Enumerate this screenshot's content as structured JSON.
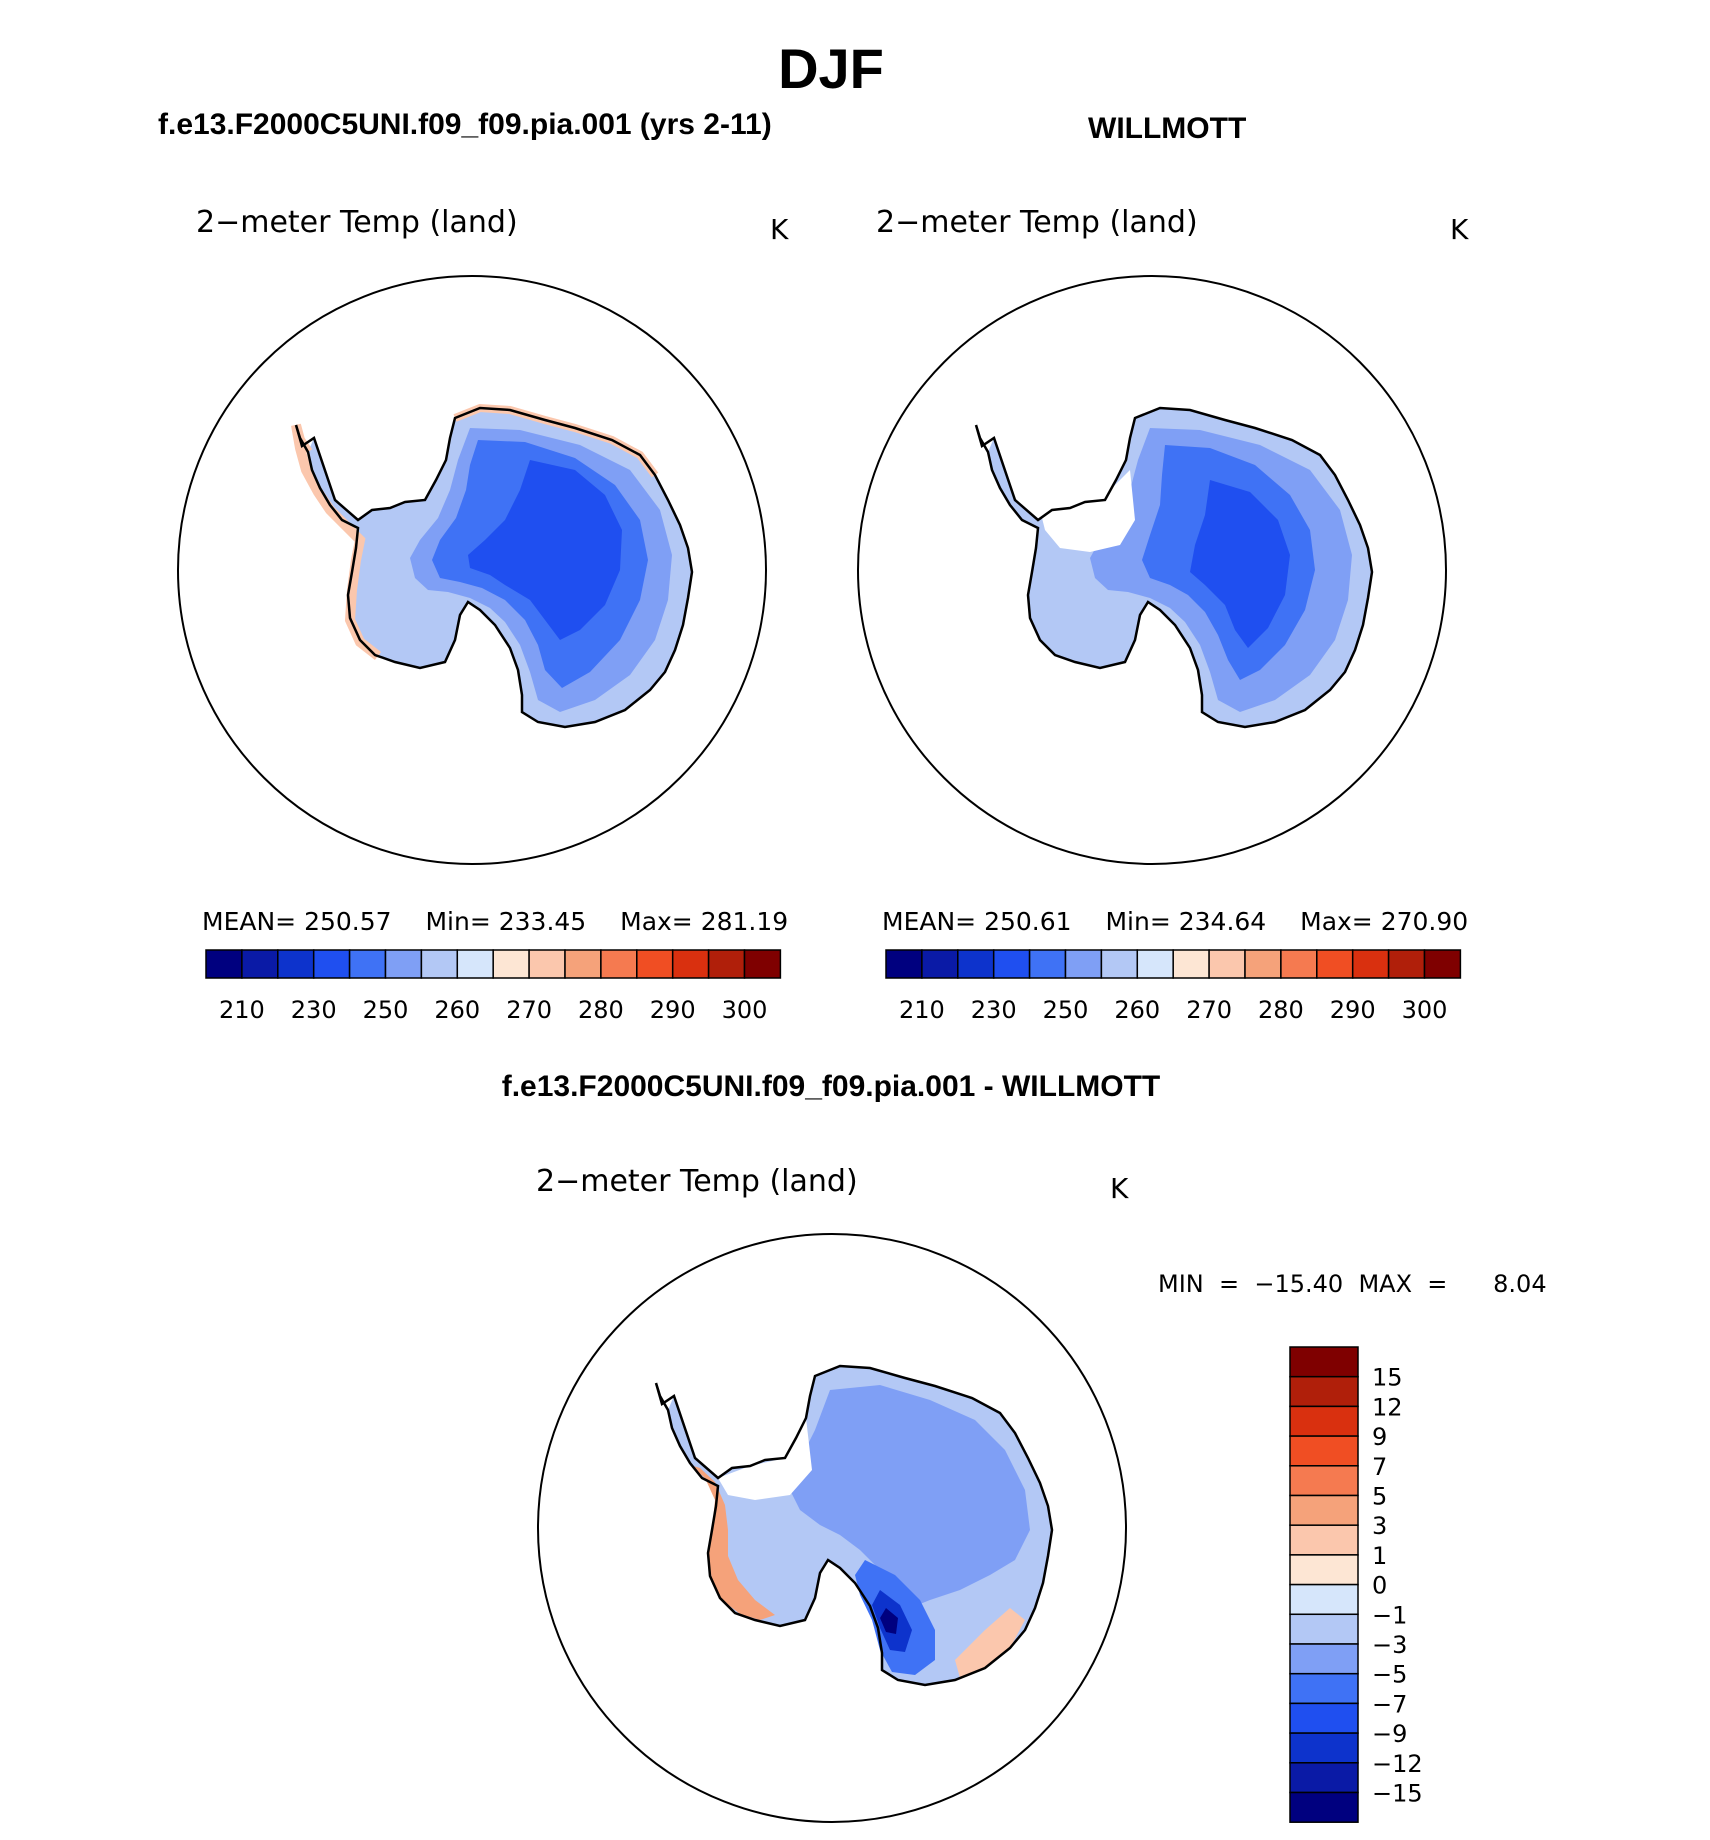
{
  "page": {
    "title": "DJF",
    "left_header": "f.e13.F2000C5UNI.f09_f09.pia.001 (yrs 2-11)",
    "right_header": "WILLMOTT",
    "diff_header": "f.e13.F2000C5UNI.f09_f09.pia.001 - WILLMOTT"
  },
  "panels": {
    "model": {
      "variable": "2−meter Temp (land)",
      "units": "K",
      "mean_label": "MEAN=",
      "mean": "250.57",
      "min_label": "Min=",
      "min": "233.45",
      "max_label": "Max=",
      "max": "281.19"
    },
    "obs": {
      "variable": "2−meter Temp (land)",
      "units": "K",
      "mean_label": "MEAN=",
      "mean": "250.61",
      "min_label": "Min=",
      "min": "234.64",
      "max_label": "Max=",
      "max": "270.90"
    },
    "diff": {
      "variable": "2−meter Temp (land)",
      "units": "K",
      "minmax": "MIN  =  −15.40  MAX  =      8.04"
    }
  },
  "abs_colorbar": {
    "colors": [
      "#00007f",
      "#0a1aa6",
      "#0d33cc",
      "#1f4ff0",
      "#3f72f5",
      "#7f9ff5",
      "#b3c8f5",
      "#d6e6fb",
      "#fde6d4",
      "#fbc7ad",
      "#f5a27a",
      "#f57a50",
      "#f04e23",
      "#d9300f",
      "#b01f0a",
      "#7f0000"
    ],
    "tick_labels": [
      "210",
      "230",
      "250",
      "260",
      "270",
      "280",
      "290",
      "300"
    ]
  },
  "diff_colorbar": {
    "colors": [
      "#00007f",
      "#0a1aa6",
      "#0d33cc",
      "#1f4ff0",
      "#3f72f5",
      "#7f9ff5",
      "#b3c8f5",
      "#d6e6fb",
      "#fde6d4",
      "#fbc7ad",
      "#f5a27a",
      "#f57a50",
      "#f04e23",
      "#d9300f",
      "#b01f0a",
      "#7f0000"
    ],
    "tick_labels": [
      "−15",
      "−12",
      "−9",
      "−7",
      "−5",
      "−3",
      "−1",
      "0",
      "1",
      "3",
      "5",
      "7",
      "9",
      "12",
      "15"
    ]
  }
}
